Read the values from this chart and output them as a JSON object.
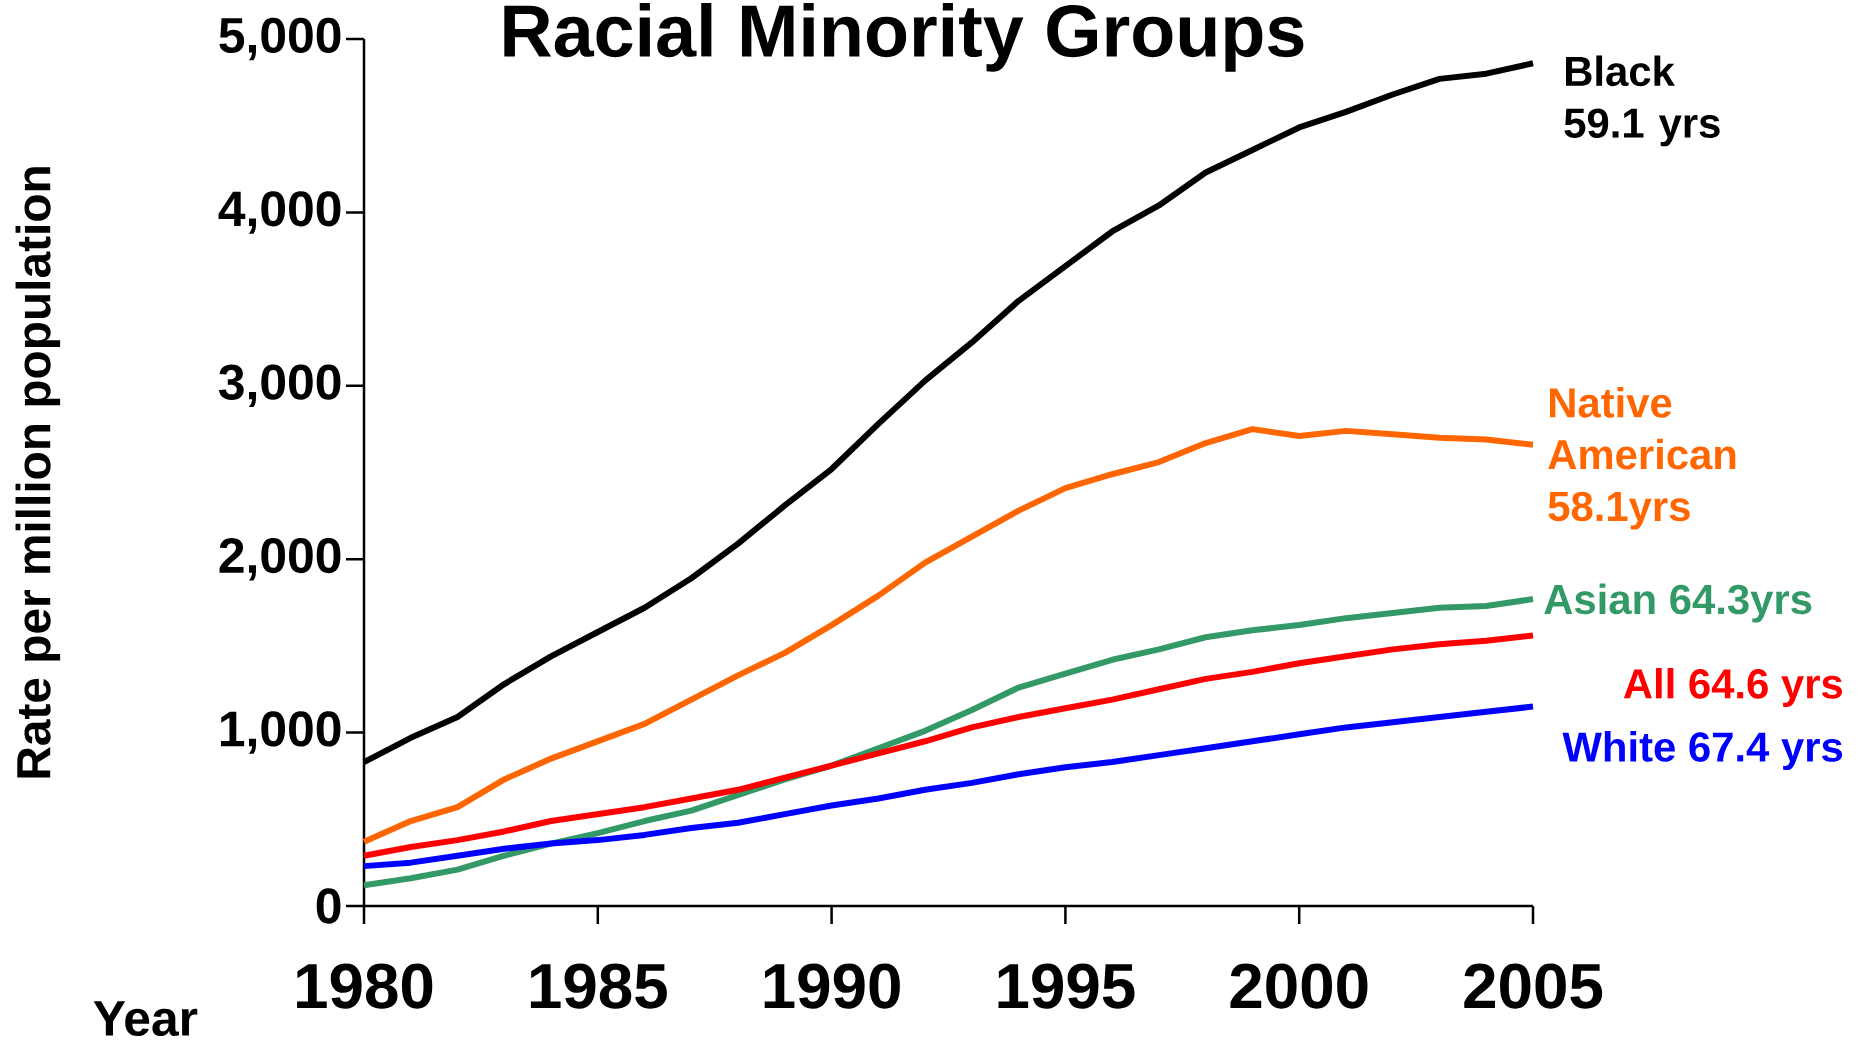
{
  "chart_data": {
    "type": "line",
    "title": "Racial Minority Groups",
    "xlabel": "Year",
    "ylabel": "Rate per million population",
    "x": [
      1980,
      1981,
      1982,
      1983,
      1984,
      1985,
      1986,
      1987,
      1988,
      1989,
      1990,
      1991,
      1992,
      1993,
      1994,
      1995,
      1996,
      1997,
      1998,
      1999,
      2000,
      2001,
      2002,
      2003,
      2004,
      2005
    ],
    "series": [
      {
        "name": "Black 59.1 yrs",
        "color": "#000000",
        "values": [
          830,
          970,
          1090,
          1280,
          1440,
          1580,
          1720,
          1890,
          2090,
          2310,
          2520,
          2780,
          3030,
          3250,
          3490,
          3690,
          3890,
          4040,
          4230,
          4360,
          4490,
          4580,
          4680,
          4770,
          4800,
          4860
        ]
      },
      {
        "name": "Native American 58.1yrs",
        "color": "#ff6600",
        "values": [
          370,
          490,
          570,
          730,
          850,
          950,
          1050,
          1190,
          1330,
          1460,
          1620,
          1790,
          1980,
          2130,
          2280,
          2410,
          2490,
          2560,
          2670,
          2750,
          2710,
          2740,
          2720,
          2700,
          2690,
          2660
        ]
      },
      {
        "name": "Asian 64.3yrs",
        "color": "#339966",
        "values": [
          120,
          160,
          210,
          290,
          360,
          420,
          490,
          550,
          640,
          730,
          810,
          910,
          1010,
          1130,
          1260,
          1340,
          1420,
          1480,
          1550,
          1590,
          1620,
          1660,
          1690,
          1720,
          1730,
          1770
        ]
      },
      {
        "name": "All  64.6 yrs",
        "color": "#ff0000",
        "values": [
          290,
          340,
          380,
          430,
          490,
          530,
          570,
          620,
          670,
          740,
          810,
          880,
          950,
          1030,
          1090,
          1140,
          1190,
          1250,
          1310,
          1350,
          1400,
          1440,
          1480,
          1510,
          1530,
          1560
        ]
      },
      {
        "name": "White 67.4 yrs",
        "color": "#0000ff",
        "values": [
          230,
          250,
          290,
          330,
          360,
          380,
          410,
          450,
          480,
          530,
          580,
          620,
          670,
          710,
          760,
          800,
          830,
          870,
          910,
          950,
          990,
          1030,
          1060,
          1090,
          1120,
          1150
        ]
      }
    ],
    "xlim": [
      1980,
      2005
    ],
    "xticks": [
      1980,
      1985,
      1990,
      1995,
      2000,
      2005
    ],
    "ylim": [
      0,
      5000
    ],
    "yticks": [
      0,
      {
        "value": 1000,
        "label": "1,000"
      },
      {
        "value": 2000,
        "label": "2,000"
      },
      {
        "value": 3000,
        "label": "3,000"
      },
      {
        "value": 4000,
        "label": "4,000"
      },
      {
        "value": 5000,
        "label": "5,000"
      }
    ]
  }
}
